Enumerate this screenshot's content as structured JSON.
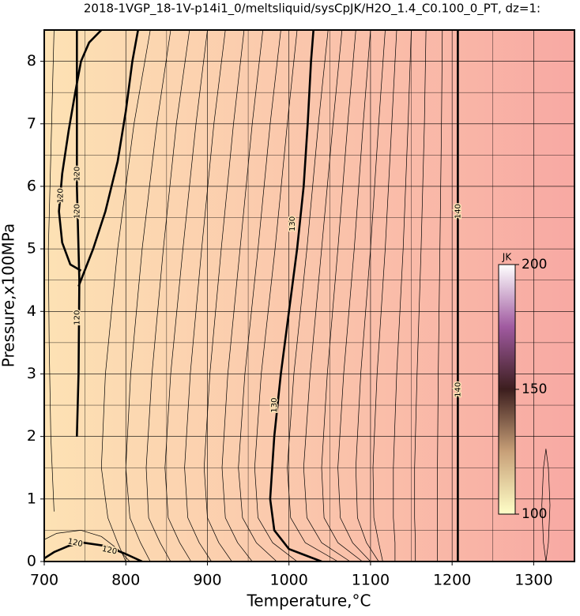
{
  "chart_data": {
    "type": "contour",
    "title": "2018-1VGP_18-1V-p14i1_0/meltsliquid/sysCpJK/H2O_1.4_C0.100_0_PT, dz=1:",
    "x_label": "Temperature,°C",
    "y_label": "Pressure,x100MPa",
    "xlim": [
      700,
      1350
    ],
    "ylim": [
      0,
      8.5
    ],
    "xticks": [
      700,
      800,
      900,
      1000,
      1100,
      1200,
      1300
    ],
    "yticks": [
      0,
      1,
      2,
      3,
      4,
      5,
      6,
      7,
      8
    ],
    "xminorticks": [
      750,
      850,
      950,
      1050,
      1150,
      1250
    ],
    "yminorticks": [
      0.5,
      1.5,
      2.5,
      3.5,
      4.5,
      5.5,
      6.5,
      7.5
    ],
    "grid": true,
    "background_colors": [
      "#fde2b4",
      "#f8a9a3"
    ],
    "contours": [
      {
        "level": 140,
        "major": true,
        "x": [
          1207,
          1207
        ],
        "y": [
          0,
          8.5
        ]
      },
      {
        "level": 130,
        "major": true,
        "x": [
          1040,
          1000,
          982,
          977,
          982,
          990,
          1000,
          1010,
          1018,
          1023,
          1027,
          1030
        ],
        "y": [
          0,
          0.2,
          0.5,
          1,
          2,
          3,
          4,
          5,
          6,
          7,
          8,
          8.5
        ]
      },
      {
        "level": 120,
        "major": true,
        "x": [
          740,
          742,
          743,
          740,
          740
        ],
        "y": [
          2,
          3,
          4.5,
          6,
          8.5
        ]
      },
      {
        "level": 120,
        "major": true,
        "x": [
          745,
          732,
          722,
          718,
          722,
          730,
          738,
          745,
          755,
          770
        ],
        "y": [
          4.65,
          4.75,
          5.1,
          5.6,
          6.2,
          6.9,
          7.5,
          8,
          8.3,
          8.5
        ]
      },
      {
        "level": 120,
        "major": true,
        "x": [
          742,
          760,
          775,
          790,
          800,
          808,
          815
        ],
        "y": [
          4.4,
          5,
          5.6,
          6.4,
          7.2,
          8,
          8.5
        ]
      },
      {
        "level": 120,
        "major": true,
        "x": [
          700,
          712,
          730,
          748,
          775,
          800,
          820
        ],
        "y": [
          0.05,
          0.15,
          0.25,
          0.3,
          0.25,
          0.12,
          0
        ]
      },
      {
        "level": 121,
        "major": false,
        "x": [
          800,
          790,
          778,
          770,
          775,
          790,
          810,
          830
        ],
        "y": [
          0,
          0.3,
          0.7,
          1.5,
          3,
          5,
          7,
          8.5
        ]
      },
      {
        "level": 122,
        "major": false,
        "x": [
          830,
          818,
          805,
          800,
          806,
          820,
          838,
          855
        ],
        "y": [
          0,
          0.3,
          0.7,
          1.5,
          3,
          5,
          7,
          8.5
        ]
      },
      {
        "level": 123,
        "major": false,
        "x": [
          855,
          842,
          828,
          825,
          832,
          846,
          862,
          878
        ],
        "y": [
          0,
          0.3,
          0.7,
          1.5,
          3,
          5,
          7,
          8.5
        ]
      },
      {
        "level": 124,
        "major": false,
        "x": [
          880,
          866,
          852,
          848,
          855,
          870,
          886,
          900
        ],
        "y": [
          0,
          0.3,
          0.7,
          1.5,
          3,
          5,
          7,
          8.5
        ]
      },
      {
        "level": 125,
        "major": false,
        "x": [
          905,
          890,
          876,
          872,
          879,
          893,
          908,
          922
        ],
        "y": [
          0,
          0.3,
          0.7,
          1.5,
          3,
          5,
          7,
          8.5
        ]
      },
      {
        "level": 126,
        "major": false,
        "x": [
          930,
          914,
          900,
          896,
          903,
          917,
          932,
          945
        ],
        "y": [
          0,
          0.3,
          0.7,
          1.5,
          3,
          5,
          7,
          8.5
        ]
      },
      {
        "level": 127,
        "major": false,
        "x": [
          955,
          937,
          922,
          918,
          925,
          940,
          955,
          968
        ],
        "y": [
          0,
          0.3,
          0.7,
          1.5,
          3,
          5,
          7,
          8.5
        ]
      },
      {
        "level": 128,
        "major": false,
        "x": [
          985,
          960,
          943,
          938,
          946,
          962,
          977,
          990
        ],
        "y": [
          0,
          0.3,
          0.7,
          1.5,
          3,
          5,
          7,
          8.5
        ]
      },
      {
        "level": 129,
        "major": false,
        "x": [
          1010,
          980,
          962,
          958,
          966,
          983,
          998,
          1010
        ],
        "y": [
          0,
          0.3,
          0.7,
          1.5,
          3,
          5,
          7,
          8.5
        ]
      },
      {
        "level": 131,
        "major": false,
        "x": [
          1060,
          1020,
          1002,
          998,
          1006,
          1022,
          1036,
          1048
        ],
        "y": [
          0,
          0.3,
          0.7,
          1.5,
          3,
          5,
          7,
          8.5
        ]
      },
      {
        "level": 132,
        "major": false,
        "x": [
          1075,
          1040,
          1022,
          1018,
          1026,
          1040,
          1054,
          1065
        ],
        "y": [
          0,
          0.3,
          0.7,
          1.5,
          3,
          5,
          7,
          8.5
        ]
      },
      {
        "level": 133,
        "major": false,
        "x": [
          1090,
          1060,
          1043,
          1040,
          1047,
          1060,
          1072,
          1082
        ],
        "y": [
          0,
          0.3,
          0.7,
          1.5,
          3,
          5,
          7,
          8.5
        ]
      },
      {
        "level": 134,
        "major": false,
        "x": [
          1100,
          1078,
          1063,
          1060,
          1067,
          1080,
          1091,
          1100
        ],
        "y": [
          0,
          0.3,
          0.7,
          1.5,
          3,
          5,
          7,
          8.5
        ]
      },
      {
        "level": 135,
        "major": false,
        "x": [
          1110,
          1095,
          1084,
          1082,
          1088,
          1100,
          1110,
          1118
        ],
        "y": [
          0,
          0.3,
          0.7,
          1.5,
          3,
          5,
          7,
          8.5
        ]
      },
      {
        "level": 136,
        "major": false,
        "x": [
          1115,
          1110,
          1104,
          1103,
          1108,
          1118,
          1126,
          1132
        ],
        "y": [
          0,
          0.3,
          0.7,
          1.5,
          3,
          5,
          7,
          8.5
        ]
      },
      {
        "level": 137,
        "major": false,
        "x": [
          1130,
          1130,
          1128,
          1128,
          1132,
          1140,
          1146,
          1150
        ],
        "y": [
          0,
          0.3,
          0.7,
          1.5,
          3,
          5,
          7,
          8.5
        ]
      },
      {
        "level": 138,
        "major": false,
        "x": [
          1155,
          1155,
          1154,
          1154,
          1157,
          1162,
          1166,
          1168
        ],
        "y": [
          0,
          0.3,
          0.7,
          1.5,
          3,
          5,
          7,
          8.5
        ]
      },
      {
        "level": 139,
        "major": false,
        "x": [
          1182,
          1182,
          1182,
          1182,
          1183,
          1185,
          1187,
          1188
        ],
        "y": [
          0,
          0.3,
          0.7,
          1.5,
          3,
          5,
          7,
          8.5
        ]
      },
      {
        "level": 119,
        "major": false,
        "x": [
          712,
          708,
          706,
          705,
          708,
          712
        ],
        "y": [
          0.8,
          2,
          3.5,
          5,
          6.5,
          8.5
        ]
      },
      {
        "level": 118,
        "major": false,
        "x": [
          700,
          715,
          745,
          770,
          790,
          805
        ],
        "y": [
          0.35,
          0.45,
          0.5,
          0.4,
          0.2,
          0
        ]
      },
      {
        "level": 141,
        "major": false,
        "x": [
          1315,
          1318,
          1320,
          1318,
          1315,
          1312,
          1310,
          1312,
          1315
        ],
        "y": [
          0,
          0.3,
          0.9,
          1.5,
          1.8,
          1.5,
          0.9,
          0.3,
          0
        ]
      }
    ],
    "contour_labels": [
      {
        "level": 140,
        "x": 1207,
        "y": 5.6
      },
      {
        "level": 140,
        "x": 1207,
        "y": 2.75
      },
      {
        "level": 130,
        "x": 1004,
        "y": 5.4
      },
      {
        "level": 130,
        "x": 982,
        "y": 2.5
      },
      {
        "level": 120,
        "x": 740,
        "y": 6.2
      },
      {
        "level": 120,
        "x": 740,
        "y": 5.6
      },
      {
        "level": 120,
        "x": 740,
        "y": 3.9
      },
      {
        "level": 120,
        "x": 720,
        "y": 5.85
      },
      {
        "level": 120,
        "x": 738,
        "y": 0.3
      },
      {
        "level": 120,
        "x": 780,
        "y": 0.18
      }
    ],
    "colorbar": {
      "label": "JK",
      "lim": [
        100,
        200
      ],
      "ticks": [
        100,
        150,
        200
      ],
      "colors": [
        "#ffffc8",
        "#c8a078",
        "#3c1e1e",
        "#a05aa0",
        "#ffffff"
      ]
    }
  }
}
